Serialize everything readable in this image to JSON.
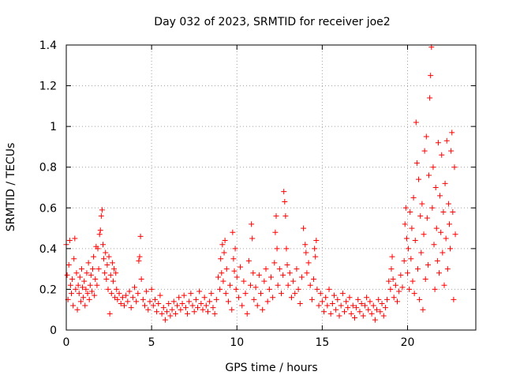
{
  "chart_data": {
    "type": "scatter",
    "title": "Day 032 of 2023, SRMTID for receiver joe2",
    "xlabel": "GPS time / hours",
    "ylabel": "SRMTID / TECUs",
    "xlim": [
      0,
      24
    ],
    "ylim": [
      0,
      1.4
    ],
    "xticks": [
      "0",
      "5",
      "10",
      "15",
      "20"
    ],
    "yticks": [
      "0",
      "0.2",
      "0.4",
      "0.6",
      "0.8",
      "1",
      "1.2",
      "1.4"
    ],
    "grid": true,
    "marker": "+",
    "color": "#ff0000",
    "series": [
      {
        "name": "SRMTID",
        "points": [
          [
            0.0,
            0.42
          ],
          [
            0.05,
            0.27
          ],
          [
            0.1,
            0.15
          ],
          [
            0.15,
            0.32
          ],
          [
            0.2,
            0.44
          ],
          [
            0.25,
            0.22
          ],
          [
            0.3,
            0.18
          ],
          [
            0.35,
            0.25
          ],
          [
            0.4,
            0.12
          ],
          [
            0.45,
            0.35
          ],
          [
            0.5,
            0.45
          ],
          [
            0.55,
            0.2
          ],
          [
            0.6,
            0.28
          ],
          [
            0.65,
            0.1
          ],
          [
            0.7,
            0.22
          ],
          [
            0.75,
            0.18
          ],
          [
            0.8,
            0.26
          ],
          [
            0.85,
            0.14
          ],
          [
            0.9,
            0.3
          ],
          [
            0.95,
            0.21
          ],
          [
            1.0,
            0.16
          ],
          [
            1.05,
            0.24
          ],
          [
            1.1,
            0.12
          ],
          [
            1.15,
            0.2
          ],
          [
            1.2,
            0.28
          ],
          [
            1.25,
            0.18
          ],
          [
            1.3,
            0.33
          ],
          [
            1.35,
            0.15
          ],
          [
            1.4,
            0.22
          ],
          [
            1.45,
            0.27
          ],
          [
            1.5,
            0.19
          ],
          [
            1.55,
            0.3
          ],
          [
            1.6,
            0.36
          ],
          [
            1.65,
            0.17
          ],
          [
            1.7,
            0.25
          ],
          [
            1.75,
            0.41
          ],
          [
            1.8,
            0.22
          ],
          [
            1.85,
            0.4
          ],
          [
            1.9,
            0.3
          ],
          [
            1.95,
            0.47
          ],
          [
            2.0,
            0.49
          ],
          [
            2.05,
            0.56
          ],
          [
            2.1,
            0.59
          ],
          [
            2.15,
            0.42
          ],
          [
            2.2,
            0.35
          ],
          [
            2.25,
            0.28
          ],
          [
            2.3,
            0.38
          ],
          [
            2.35,
            0.25
          ],
          [
            2.4,
            0.32
          ],
          [
            2.45,
            0.2
          ],
          [
            2.5,
            0.36
          ],
          [
            2.55,
            0.08
          ],
          [
            2.6,
            0.27
          ],
          [
            2.65,
            0.18
          ],
          [
            2.7,
            0.33
          ],
          [
            2.75,
            0.24
          ],
          [
            2.8,
            0.3
          ],
          [
            2.85,
            0.16
          ],
          [
            2.9,
            0.28
          ],
          [
            2.95,
            0.2
          ],
          [
            3.0,
            0.15
          ],
          [
            3.1,
            0.18
          ],
          [
            3.2,
            0.13
          ],
          [
            3.3,
            0.16
          ],
          [
            3.4,
            0.12
          ],
          [
            3.5,
            0.17
          ],
          [
            3.6,
            0.14
          ],
          [
            3.7,
            0.19
          ],
          [
            3.8,
            0.11
          ],
          [
            3.9,
            0.16
          ],
          [
            4.0,
            0.21
          ],
          [
            4.1,
            0.14
          ],
          [
            4.2,
            0.18
          ],
          [
            4.25,
            0.34
          ],
          [
            4.3,
            0.36
          ],
          [
            4.35,
            0.46
          ],
          [
            4.4,
            0.25
          ],
          [
            4.5,
            0.15
          ],
          [
            4.6,
            0.12
          ],
          [
            4.7,
            0.19
          ],
          [
            4.8,
            0.1
          ],
          [
            4.9,
            0.14
          ],
          [
            5.0,
            0.2
          ],
          [
            5.1,
            0.12
          ],
          [
            5.2,
            0.15
          ],
          [
            5.3,
            0.09
          ],
          [
            5.4,
            0.13
          ],
          [
            5.5,
            0.17
          ],
          [
            5.6,
            0.08
          ],
          [
            5.7,
            0.11
          ],
          [
            5.8,
            0.05
          ],
          [
            5.9,
            0.09
          ],
          [
            6.0,
            0.13
          ],
          [
            6.1,
            0.07
          ],
          [
            6.2,
            0.1
          ],
          [
            6.3,
            0.14
          ],
          [
            6.4,
            0.08
          ],
          [
            6.5,
            0.12
          ],
          [
            6.6,
            0.16
          ],
          [
            6.7,
            0.1
          ],
          [
            6.8,
            0.13
          ],
          [
            6.9,
            0.17
          ],
          [
            7.0,
            0.11
          ],
          [
            7.1,
            0.08
          ],
          [
            7.2,
            0.14
          ],
          [
            7.3,
            0.18
          ],
          [
            7.4,
            0.12
          ],
          [
            7.5,
            0.09
          ],
          [
            7.6,
            0.15
          ],
          [
            7.7,
            0.11
          ],
          [
            7.8,
            0.19
          ],
          [
            7.9,
            0.13
          ],
          [
            8.0,
            0.1
          ],
          [
            8.1,
            0.16
          ],
          [
            8.2,
            0.12
          ],
          [
            8.3,
            0.09
          ],
          [
            8.4,
            0.14
          ],
          [
            8.5,
            0.18
          ],
          [
            8.6,
            0.11
          ],
          [
            8.7,
            0.08
          ],
          [
            8.8,
            0.15
          ],
          [
            8.9,
            0.26
          ],
          [
            9.0,
            0.2
          ],
          [
            9.05,
            0.35
          ],
          [
            9.1,
            0.28
          ],
          [
            9.15,
            0.42
          ],
          [
            9.2,
            0.24
          ],
          [
            9.25,
            0.38
          ],
          [
            9.3,
            0.44
          ],
          [
            9.35,
            0.18
          ],
          [
            9.4,
            0.3
          ],
          [
            9.5,
            0.14
          ],
          [
            9.6,
            0.22
          ],
          [
            9.7,
            0.1
          ],
          [
            9.75,
            0.48
          ],
          [
            9.8,
            0.35
          ],
          [
            9.85,
            0.29
          ],
          [
            9.9,
            0.4
          ],
          [
            9.95,
            0.2
          ],
          [
            10.0,
            0.26
          ],
          [
            10.1,
            0.16
          ],
          [
            10.2,
            0.31
          ],
          [
            10.3,
            0.12
          ],
          [
            10.4,
            0.24
          ],
          [
            10.5,
            0.18
          ],
          [
            10.6,
            0.08
          ],
          [
            10.7,
            0.34
          ],
          [
            10.8,
            0.22
          ],
          [
            10.85,
            0.52
          ],
          [
            10.9,
            0.45
          ],
          [
            10.95,
            0.28
          ],
          [
            11.0,
            0.15
          ],
          [
            11.1,
            0.21
          ],
          [
            11.2,
            0.12
          ],
          [
            11.3,
            0.27
          ],
          [
            11.4,
            0.18
          ],
          [
            11.5,
            0.1
          ],
          [
            11.6,
            0.24
          ],
          [
            11.7,
            0.3
          ],
          [
            11.8,
            0.14
          ],
          [
            11.9,
            0.2
          ],
          [
            12.0,
            0.26
          ],
          [
            12.1,
            0.16
          ],
          [
            12.2,
            0.33
          ],
          [
            12.25,
            0.48
          ],
          [
            12.3,
            0.56
          ],
          [
            12.35,
            0.4
          ],
          [
            12.4,
            0.22
          ],
          [
            12.5,
            0.3
          ],
          [
            12.6,
            0.18
          ],
          [
            12.7,
            0.27
          ],
          [
            12.75,
            0.68
          ],
          [
            12.8,
            0.63
          ],
          [
            12.85,
            0.56
          ],
          [
            12.9,
            0.4
          ],
          [
            12.95,
            0.32
          ],
          [
            13.0,
            0.22
          ],
          [
            13.1,
            0.28
          ],
          [
            13.2,
            0.16
          ],
          [
            13.3,
            0.24
          ],
          [
            13.4,
            0.18
          ],
          [
            13.5,
            0.3
          ],
          [
            13.6,
            0.2
          ],
          [
            13.7,
            0.13
          ],
          [
            13.8,
            0.26
          ],
          [
            13.9,
            0.5
          ],
          [
            14.0,
            0.42
          ],
          [
            14.05,
            0.38
          ],
          [
            14.1,
            0.28
          ],
          [
            14.2,
            0.33
          ],
          [
            14.3,
            0.22
          ],
          [
            14.4,
            0.15
          ],
          [
            14.5,
            0.25
          ],
          [
            14.55,
            0.4
          ],
          [
            14.6,
            0.36
          ],
          [
            14.65,
            0.44
          ],
          [
            14.7,
            0.2
          ],
          [
            14.8,
            0.12
          ],
          [
            14.9,
            0.18
          ],
          [
            15.0,
            0.14
          ],
          [
            15.1,
            0.09
          ],
          [
            15.2,
            0.16
          ],
          [
            15.3,
            0.12
          ],
          [
            15.4,
            0.2
          ],
          [
            15.5,
            0.08
          ],
          [
            15.6,
            0.13
          ],
          [
            15.7,
            0.17
          ],
          [
            15.8,
            0.1
          ],
          [
            15.9,
            0.15
          ],
          [
            16.0,
            0.07
          ],
          [
            16.1,
            0.12
          ],
          [
            16.2,
            0.18
          ],
          [
            16.3,
            0.09
          ],
          [
            16.4,
            0.14
          ],
          [
            16.5,
            0.11
          ],
          [
            16.6,
            0.16
          ],
          [
            16.7,
            0.08
          ],
          [
            16.8,
            0.12
          ],
          [
            16.9,
            0.06
          ],
          [
            17.0,
            0.11
          ],
          [
            17.1,
            0.15
          ],
          [
            17.2,
            0.09
          ],
          [
            17.3,
            0.13
          ],
          [
            17.4,
            0.07
          ],
          [
            17.5,
            0.12
          ],
          [
            17.6,
            0.16
          ],
          [
            17.7,
            0.1
          ],
          [
            17.8,
            0.14
          ],
          [
            17.9,
            0.08
          ],
          [
            18.0,
            0.12
          ],
          [
            18.1,
            0.05
          ],
          [
            18.2,
            0.1
          ],
          [
            18.3,
            0.15
          ],
          [
            18.4,
            0.09
          ],
          [
            18.5,
            0.13
          ],
          [
            18.6,
            0.07
          ],
          [
            18.7,
            0.11
          ],
          [
            18.8,
            0.15
          ],
          [
            18.9,
            0.24
          ],
          [
            19.0,
            0.2
          ],
          [
            19.05,
            0.3
          ],
          [
            19.1,
            0.36
          ],
          [
            19.15,
            0.25
          ],
          [
            19.2,
            0.16
          ],
          [
            19.3,
            0.22
          ],
          [
            19.4,
            0.14
          ],
          [
            19.5,
            0.19
          ],
          [
            19.6,
            0.27
          ],
          [
            19.7,
            0.21
          ],
          [
            19.8,
            0.34
          ],
          [
            19.85,
            0.52
          ],
          [
            19.9,
            0.6
          ],
          [
            19.95,
            0.45
          ],
          [
            20.0,
            0.28
          ],
          [
            20.05,
            0.4
          ],
          [
            20.1,
            0.2
          ],
          [
            20.15,
            0.58
          ],
          [
            20.2,
            0.35
          ],
          [
            20.25,
            0.5
          ],
          [
            20.3,
            0.24
          ],
          [
            20.35,
            0.65
          ],
          [
            20.4,
            0.18
          ],
          [
            20.45,
            0.44
          ],
          [
            20.5,
            1.02
          ],
          [
            20.55,
            0.82
          ],
          [
            20.6,
            0.3
          ],
          [
            20.65,
            0.74
          ],
          [
            20.7,
            0.15
          ],
          [
            20.75,
            0.56
          ],
          [
            20.8,
            0.38
          ],
          [
            20.85,
            0.62
          ],
          [
            20.9,
            0.1
          ],
          [
            20.95,
            0.47
          ],
          [
            21.0,
            0.88
          ],
          [
            21.05,
            0.25
          ],
          [
            21.1,
            0.95
          ],
          [
            21.15,
            0.55
          ],
          [
            21.2,
            0.32
          ],
          [
            21.25,
            0.76
          ],
          [
            21.3,
            1.14
          ],
          [
            21.35,
            1.25
          ],
          [
            21.4,
            1.39
          ],
          [
            21.45,
            0.6
          ],
          [
            21.5,
            0.8
          ],
          [
            21.55,
            0.42
          ],
          [
            21.6,
            0.2
          ],
          [
            21.65,
            0.7
          ],
          [
            21.7,
            0.5
          ],
          [
            21.75,
            0.34
          ],
          [
            21.8,
            0.92
          ],
          [
            21.85,
            0.28
          ],
          [
            21.9,
            0.66
          ],
          [
            21.95,
            0.48
          ],
          [
            22.0,
            0.86
          ],
          [
            22.05,
            0.38
          ],
          [
            22.1,
            0.58
          ],
          [
            22.15,
            0.22
          ],
          [
            22.2,
            0.72
          ],
          [
            22.25,
            0.45
          ],
          [
            22.3,
            0.93
          ],
          [
            22.35,
            0.3
          ],
          [
            22.4,
            0.62
          ],
          [
            22.45,
            0.52
          ],
          [
            22.5,
            0.4
          ],
          [
            22.55,
            0.88
          ],
          [
            22.6,
            0.97
          ],
          [
            22.65,
            0.58
          ],
          [
            22.7,
            0.15
          ],
          [
            22.75,
            0.8
          ],
          [
            22.8,
            0.47
          ]
        ]
      }
    ]
  }
}
